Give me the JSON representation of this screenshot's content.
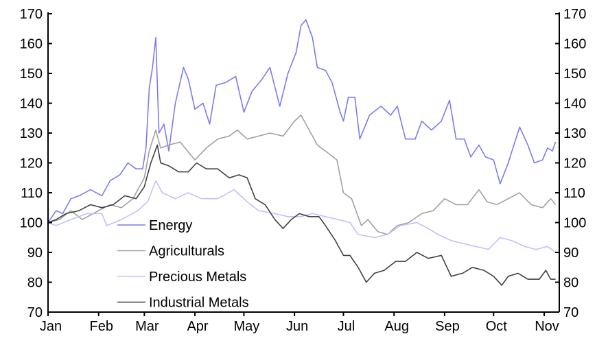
{
  "chart_data": {
    "type": "line",
    "title": "",
    "xlabel": "",
    "ylabel": "",
    "ylim": [
      70,
      170
    ],
    "yticks": [
      70,
      80,
      90,
      100,
      110,
      120,
      130,
      140,
      150,
      160,
      170
    ],
    "y2ticks": [
      70,
      80,
      90,
      100,
      110,
      120,
      130,
      140,
      150,
      160,
      170
    ],
    "xticks": [
      {
        "label": "Jan",
        "date": "01-01"
      },
      {
        "label": "Feb",
        "date": "02-01"
      },
      {
        "label": "Mar",
        "date": "03-01"
      },
      {
        "label": "Apr",
        "date": "04-01"
      },
      {
        "label": "May",
        "date": "05-01"
      },
      {
        "label": "Jun",
        "date": "06-01"
      },
      {
        "label": "Jul",
        "date": "07-01"
      },
      {
        "label": "Aug",
        "date": "08-01"
      },
      {
        "label": "Sep",
        "date": "09-01"
      },
      {
        "label": "Oct",
        "date": "10-01"
      },
      {
        "label": "Nov",
        "date": "11-01"
      }
    ],
    "xlim": [
      "01-01",
      "11-10"
    ],
    "grid": false,
    "legend": "bottom-left",
    "series": [
      {
        "name": "Energy",
        "color": "#7b7bf0",
        "points": [
          [
            "01-01",
            100
          ],
          [
            "01-06",
            104
          ],
          [
            "01-10",
            103
          ],
          [
            "01-15",
            108
          ],
          [
            "01-20",
            109
          ],
          [
            "01-27",
            111
          ],
          [
            "02-03",
            109
          ],
          [
            "02-08",
            114
          ],
          [
            "02-14",
            116
          ],
          [
            "02-19",
            120
          ],
          [
            "02-24",
            118
          ],
          [
            "02-28",
            118
          ],
          [
            "03-02",
            125
          ],
          [
            "03-04",
            145
          ],
          [
            "03-06",
            152
          ],
          [
            "03-08",
            162
          ],
          [
            "03-10",
            130
          ],
          [
            "03-13",
            133
          ],
          [
            "03-16",
            124
          ],
          [
            "03-20",
            140
          ],
          [
            "03-25",
            152
          ],
          [
            "03-28",
            148
          ],
          [
            "04-01",
            138
          ],
          [
            "04-06",
            140
          ],
          [
            "04-10",
            133
          ],
          [
            "04-14",
            146
          ],
          [
            "04-20",
            147
          ],
          [
            "04-26",
            149
          ],
          [
            "05-01",
            137
          ],
          [
            "05-06",
            144
          ],
          [
            "05-12",
            148
          ],
          [
            "05-17",
            152
          ],
          [
            "05-23",
            139
          ],
          [
            "05-28",
            150
          ],
          [
            "06-02",
            157
          ],
          [
            "06-05",
            166
          ],
          [
            "06-08",
            168
          ],
          [
            "06-12",
            162
          ],
          [
            "06-15",
            152
          ],
          [
            "06-20",
            151
          ],
          [
            "06-24",
            147
          ],
          [
            "06-29",
            137
          ],
          [
            "07-01",
            134
          ],
          [
            "07-04",
            142
          ],
          [
            "07-08",
            142
          ],
          [
            "07-11",
            128
          ],
          [
            "07-17",
            136
          ],
          [
            "07-24",
            139
          ],
          [
            "07-30",
            136
          ],
          [
            "08-03",
            139
          ],
          [
            "08-08",
            128
          ],
          [
            "08-14",
            128
          ],
          [
            "08-18",
            134
          ],
          [
            "08-24",
            131
          ],
          [
            "08-30",
            134
          ],
          [
            "09-04",
            141
          ],
          [
            "09-08",
            128
          ],
          [
            "09-13",
            128
          ],
          [
            "09-17",
            122
          ],
          [
            "09-22",
            126
          ],
          [
            "09-26",
            122
          ],
          [
            "10-01",
            121
          ],
          [
            "10-05",
            113
          ],
          [
            "10-10",
            120
          ],
          [
            "10-14",
            127
          ],
          [
            "10-17",
            132
          ],
          [
            "10-22",
            126
          ],
          [
            "10-26",
            120
          ],
          [
            "10-31",
            121
          ],
          [
            "11-03",
            125
          ],
          [
            "11-06",
            124
          ],
          [
            "11-08",
            127
          ]
        ]
      },
      {
        "name": "Agriculturals",
        "color": "#a0a0a0",
        "points": [
          [
            "01-01",
            100
          ],
          [
            "01-08",
            101
          ],
          [
            "01-15",
            104
          ],
          [
            "01-22",
            101
          ],
          [
            "02-01",
            104
          ],
          [
            "02-08",
            106
          ],
          [
            "02-15",
            105
          ],
          [
            "02-22",
            108
          ],
          [
            "03-01",
            115
          ],
          [
            "03-04",
            124
          ],
          [
            "03-08",
            131
          ],
          [
            "03-11",
            125
          ],
          [
            "03-16",
            126
          ],
          [
            "03-23",
            127
          ],
          [
            "04-01",
            121
          ],
          [
            "04-08",
            125
          ],
          [
            "04-15",
            128
          ],
          [
            "04-22",
            129
          ],
          [
            "04-27",
            131
          ],
          [
            "05-03",
            128
          ],
          [
            "05-10",
            129
          ],
          [
            "05-17",
            130
          ],
          [
            "05-25",
            129
          ],
          [
            "06-01",
            134
          ],
          [
            "06-05",
            136
          ],
          [
            "06-10",
            131
          ],
          [
            "06-15",
            126
          ],
          [
            "06-20",
            124
          ],
          [
            "06-27",
            121
          ],
          [
            "07-01",
            110
          ],
          [
            "07-06",
            108
          ],
          [
            "07-12",
            99
          ],
          [
            "07-16",
            101
          ],
          [
            "07-22",
            97
          ],
          [
            "07-28",
            96
          ],
          [
            "08-03",
            99
          ],
          [
            "08-10",
            100
          ],
          [
            "08-18",
            103
          ],
          [
            "08-25",
            104
          ],
          [
            "09-01",
            108
          ],
          [
            "09-08",
            106
          ],
          [
            "09-15",
            106
          ],
          [
            "09-22",
            111
          ],
          [
            "09-27",
            107
          ],
          [
            "10-03",
            106
          ],
          [
            "10-10",
            108
          ],
          [
            "10-17",
            110
          ],
          [
            "10-24",
            106
          ],
          [
            "10-31",
            105
          ],
          [
            "11-05",
            108
          ],
          [
            "11-08",
            106
          ]
        ]
      },
      {
        "name": "Precious Metals",
        "color": "#c0c0ff",
        "points": [
          [
            "01-01",
            100
          ],
          [
            "01-06",
            99
          ],
          [
            "01-15",
            101
          ],
          [
            "01-25",
            103
          ],
          [
            "02-03",
            103
          ],
          [
            "02-06",
            99
          ],
          [
            "02-15",
            101
          ],
          [
            "02-25",
            104
          ],
          [
            "03-03",
            107
          ],
          [
            "03-08",
            114
          ],
          [
            "03-12",
            110
          ],
          [
            "03-20",
            108
          ],
          [
            "03-28",
            110
          ],
          [
            "04-05",
            108
          ],
          [
            "04-15",
            108
          ],
          [
            "04-25",
            111
          ],
          [
            "05-03",
            107
          ],
          [
            "05-10",
            104
          ],
          [
            "05-20",
            103
          ],
          [
            "05-28",
            102
          ],
          [
            "06-05",
            102
          ],
          [
            "06-12",
            103
          ],
          [
            "06-20",
            102
          ],
          [
            "06-28",
            101
          ],
          [
            "07-05",
            100
          ],
          [
            "07-10",
            96
          ],
          [
            "07-20",
            95
          ],
          [
            "07-28",
            96
          ],
          [
            "08-05",
            99
          ],
          [
            "08-15",
            100
          ],
          [
            "08-22",
            98
          ],
          [
            "08-28",
            96
          ],
          [
            "09-05",
            94
          ],
          [
            "09-12",
            93
          ],
          [
            "09-20",
            92
          ],
          [
            "09-28",
            91
          ],
          [
            "10-05",
            95
          ],
          [
            "10-12",
            94
          ],
          [
            "10-20",
            92
          ],
          [
            "10-27",
            91
          ],
          [
            "11-03",
            92
          ],
          [
            "11-08",
            90
          ]
        ]
      },
      {
        "name": "Industrial Metals",
        "color": "#404040",
        "points": [
          [
            "01-01",
            100
          ],
          [
            "01-06",
            101
          ],
          [
            "01-12",
            103
          ],
          [
            "01-20",
            104
          ],
          [
            "01-27",
            106
          ],
          [
            "02-03",
            105
          ],
          [
            "02-10",
            106
          ],
          [
            "02-17",
            109
          ],
          [
            "02-24",
            108
          ],
          [
            "03-01",
            112
          ],
          [
            "03-05",
            120
          ],
          [
            "03-09",
            126
          ],
          [
            "03-11",
            120
          ],
          [
            "03-16",
            119
          ],
          [
            "03-22",
            117
          ],
          [
            "03-28",
            117
          ],
          [
            "04-02",
            120
          ],
          [
            "04-08",
            118
          ],
          [
            "04-15",
            118
          ],
          [
            "04-22",
            115
          ],
          [
            "04-28",
            116
          ],
          [
            "05-03",
            115
          ],
          [
            "05-08",
            108
          ],
          [
            "05-14",
            106
          ],
          [
            "05-20",
            101
          ],
          [
            "05-25",
            98
          ],
          [
            "05-30",
            101
          ],
          [
            "06-04",
            103
          ],
          [
            "06-10",
            102
          ],
          [
            "06-16",
            102
          ],
          [
            "06-20",
            99
          ],
          [
            "06-26",
            94
          ],
          [
            "07-01",
            89
          ],
          [
            "07-05",
            89
          ],
          [
            "07-10",
            85
          ],
          [
            "07-15",
            80
          ],
          [
            "07-20",
            83
          ],
          [
            "07-26",
            84
          ],
          [
            "08-02",
            87
          ],
          [
            "08-08",
            87
          ],
          [
            "08-15",
            90
          ],
          [
            "08-22",
            88
          ],
          [
            "08-30",
            89
          ],
          [
            "09-05",
            82
          ],
          [
            "09-12",
            83
          ],
          [
            "09-18",
            85
          ],
          [
            "09-25",
            84
          ],
          [
            "10-01",
            82
          ],
          [
            "10-06",
            79
          ],
          [
            "10-10",
            82
          ],
          [
            "10-16",
            83
          ],
          [
            "10-22",
            81
          ],
          [
            "10-29",
            81
          ],
          [
            "11-02",
            84
          ],
          [
            "11-05",
            81
          ],
          [
            "11-08",
            81
          ]
        ]
      }
    ]
  }
}
